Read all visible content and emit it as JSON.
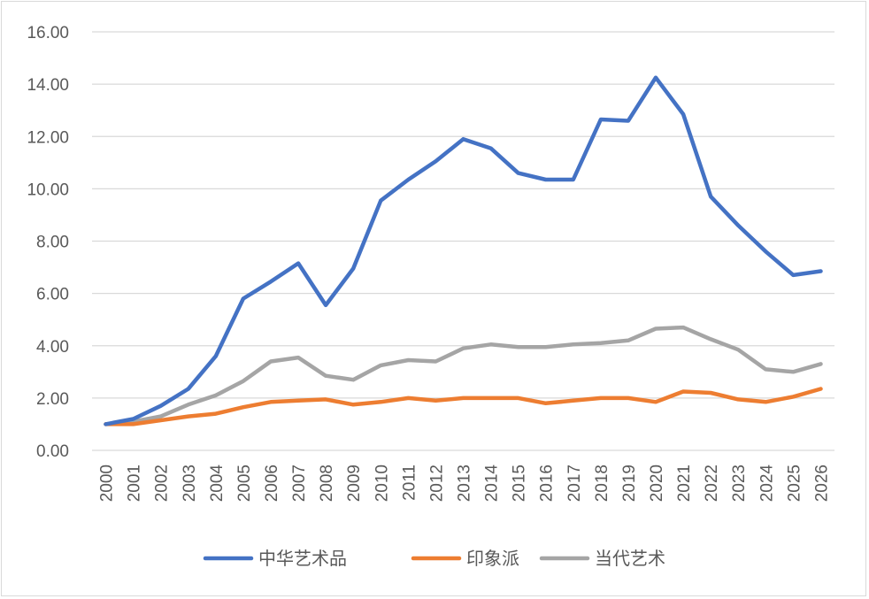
{
  "chart_data": {
    "type": "line",
    "title": "",
    "xlabel": "",
    "ylabel": "",
    "x": [
      "2000",
      "2001",
      "2002",
      "2003",
      "2004",
      "2005",
      "2006",
      "2007",
      "2008",
      "2009",
      "2010",
      "2011",
      "2012",
      "2013",
      "2014",
      "2015",
      "2016",
      "2017",
      "2018",
      "2019",
      "2020",
      "2021",
      "2022",
      "2023",
      "2024",
      "2025",
      "2026"
    ],
    "ylim": [
      0,
      16
    ],
    "yticks": [
      "0.00",
      "2.00",
      "4.00",
      "6.00",
      "8.00",
      "10.00",
      "12.00",
      "14.00",
      "16.00"
    ],
    "grid": true,
    "legend_position": "bottom",
    "series": [
      {
        "name": "中华艺术品",
        "color": "#4472C4",
        "values": [
          1.0,
          1.2,
          1.7,
          2.35,
          3.6,
          5.8,
          6.45,
          7.15,
          5.55,
          6.95,
          9.55,
          10.35,
          11.05,
          11.9,
          11.55,
          10.6,
          10.35,
          10.35,
          12.65,
          12.6,
          14.25,
          12.85,
          9.7,
          8.6,
          7.6,
          6.7,
          6.85
        ]
      },
      {
        "name": "印象派",
        "color": "#ED7D31",
        "values": [
          1.0,
          1.0,
          1.15,
          1.3,
          1.4,
          1.65,
          1.85,
          1.9,
          1.95,
          1.75,
          1.85,
          2.0,
          1.9,
          2.0,
          2.0,
          2.0,
          1.8,
          1.9,
          2.0,
          2.0,
          1.85,
          2.25,
          2.2,
          1.95,
          1.85,
          2.05,
          2.35
        ]
      },
      {
        "name": "当代艺术",
        "color": "#A5A5A5",
        "values": [
          1.0,
          1.1,
          1.3,
          1.75,
          2.1,
          2.65,
          3.4,
          3.55,
          2.85,
          2.7,
          3.25,
          3.45,
          3.4,
          3.9,
          4.05,
          3.95,
          3.95,
          4.05,
          4.1,
          4.2,
          4.65,
          4.7,
          4.25,
          3.85,
          3.1,
          3.0,
          3.3
        ]
      }
    ]
  }
}
